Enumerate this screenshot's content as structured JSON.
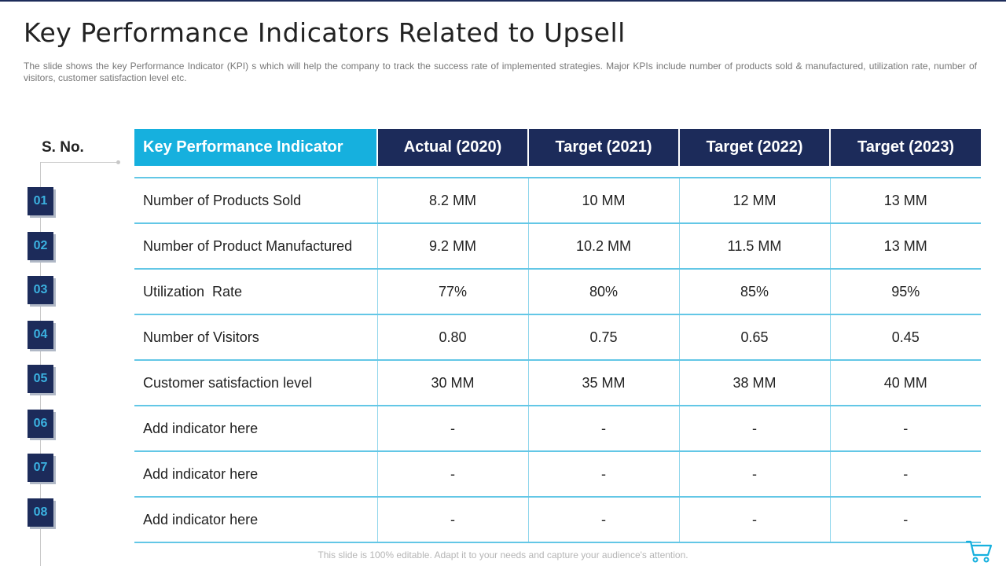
{
  "title": "Key Performance Indicators Related to Upsell",
  "subtitle": "The slide shows the key Performance Indicator (KPI) s which will help the company to track the success rate of implemented strategies. Major KPIs include number of products sold & manufactured, utilization rate, number of visitors, customer satisfaction level etc.",
  "sno_label": "S. No.",
  "numbers": [
    "01",
    "02",
    "03",
    "04",
    "05",
    "06",
    "07",
    "08"
  ],
  "table": {
    "headers": [
      "Key Performance Indicator",
      "Actual (2020)",
      "Target (2021)",
      "Target (2022)",
      "Target (2023)"
    ],
    "rows": [
      [
        "Number of Products Sold",
        "8.2 MM",
        "10 MM",
        "12 MM",
        "13 MM"
      ],
      [
        "Number of Product Manufactured",
        "9.2 MM",
        "10.2 MM",
        "11.5 MM",
        "13 MM"
      ],
      [
        "Utilization  Rate",
        "77%",
        "80%",
        "85%",
        "95%"
      ],
      [
        "Number of Visitors",
        "0.80",
        "0.75",
        "0.65",
        "0.45"
      ],
      [
        "Customer satisfaction level",
        "30 MM",
        "35 MM",
        "38 MM",
        "40 MM"
      ],
      [
        "Add indicator here",
        "-",
        "-",
        "-",
        "-"
      ],
      [
        "Add indicator here",
        "-",
        "-",
        "-",
        "-"
      ],
      [
        "Add indicator here",
        "-",
        "-",
        "-",
        "-"
      ]
    ]
  },
  "footer": "This slide is 100% editable. Adapt it to your needs and capture your audience's attention.",
  "colors": {
    "navy": "#1c2b5a",
    "cyan": "#16b0de",
    "border": "#63c7e6"
  },
  "icons": {
    "cart": "shopping-cart-icon"
  }
}
